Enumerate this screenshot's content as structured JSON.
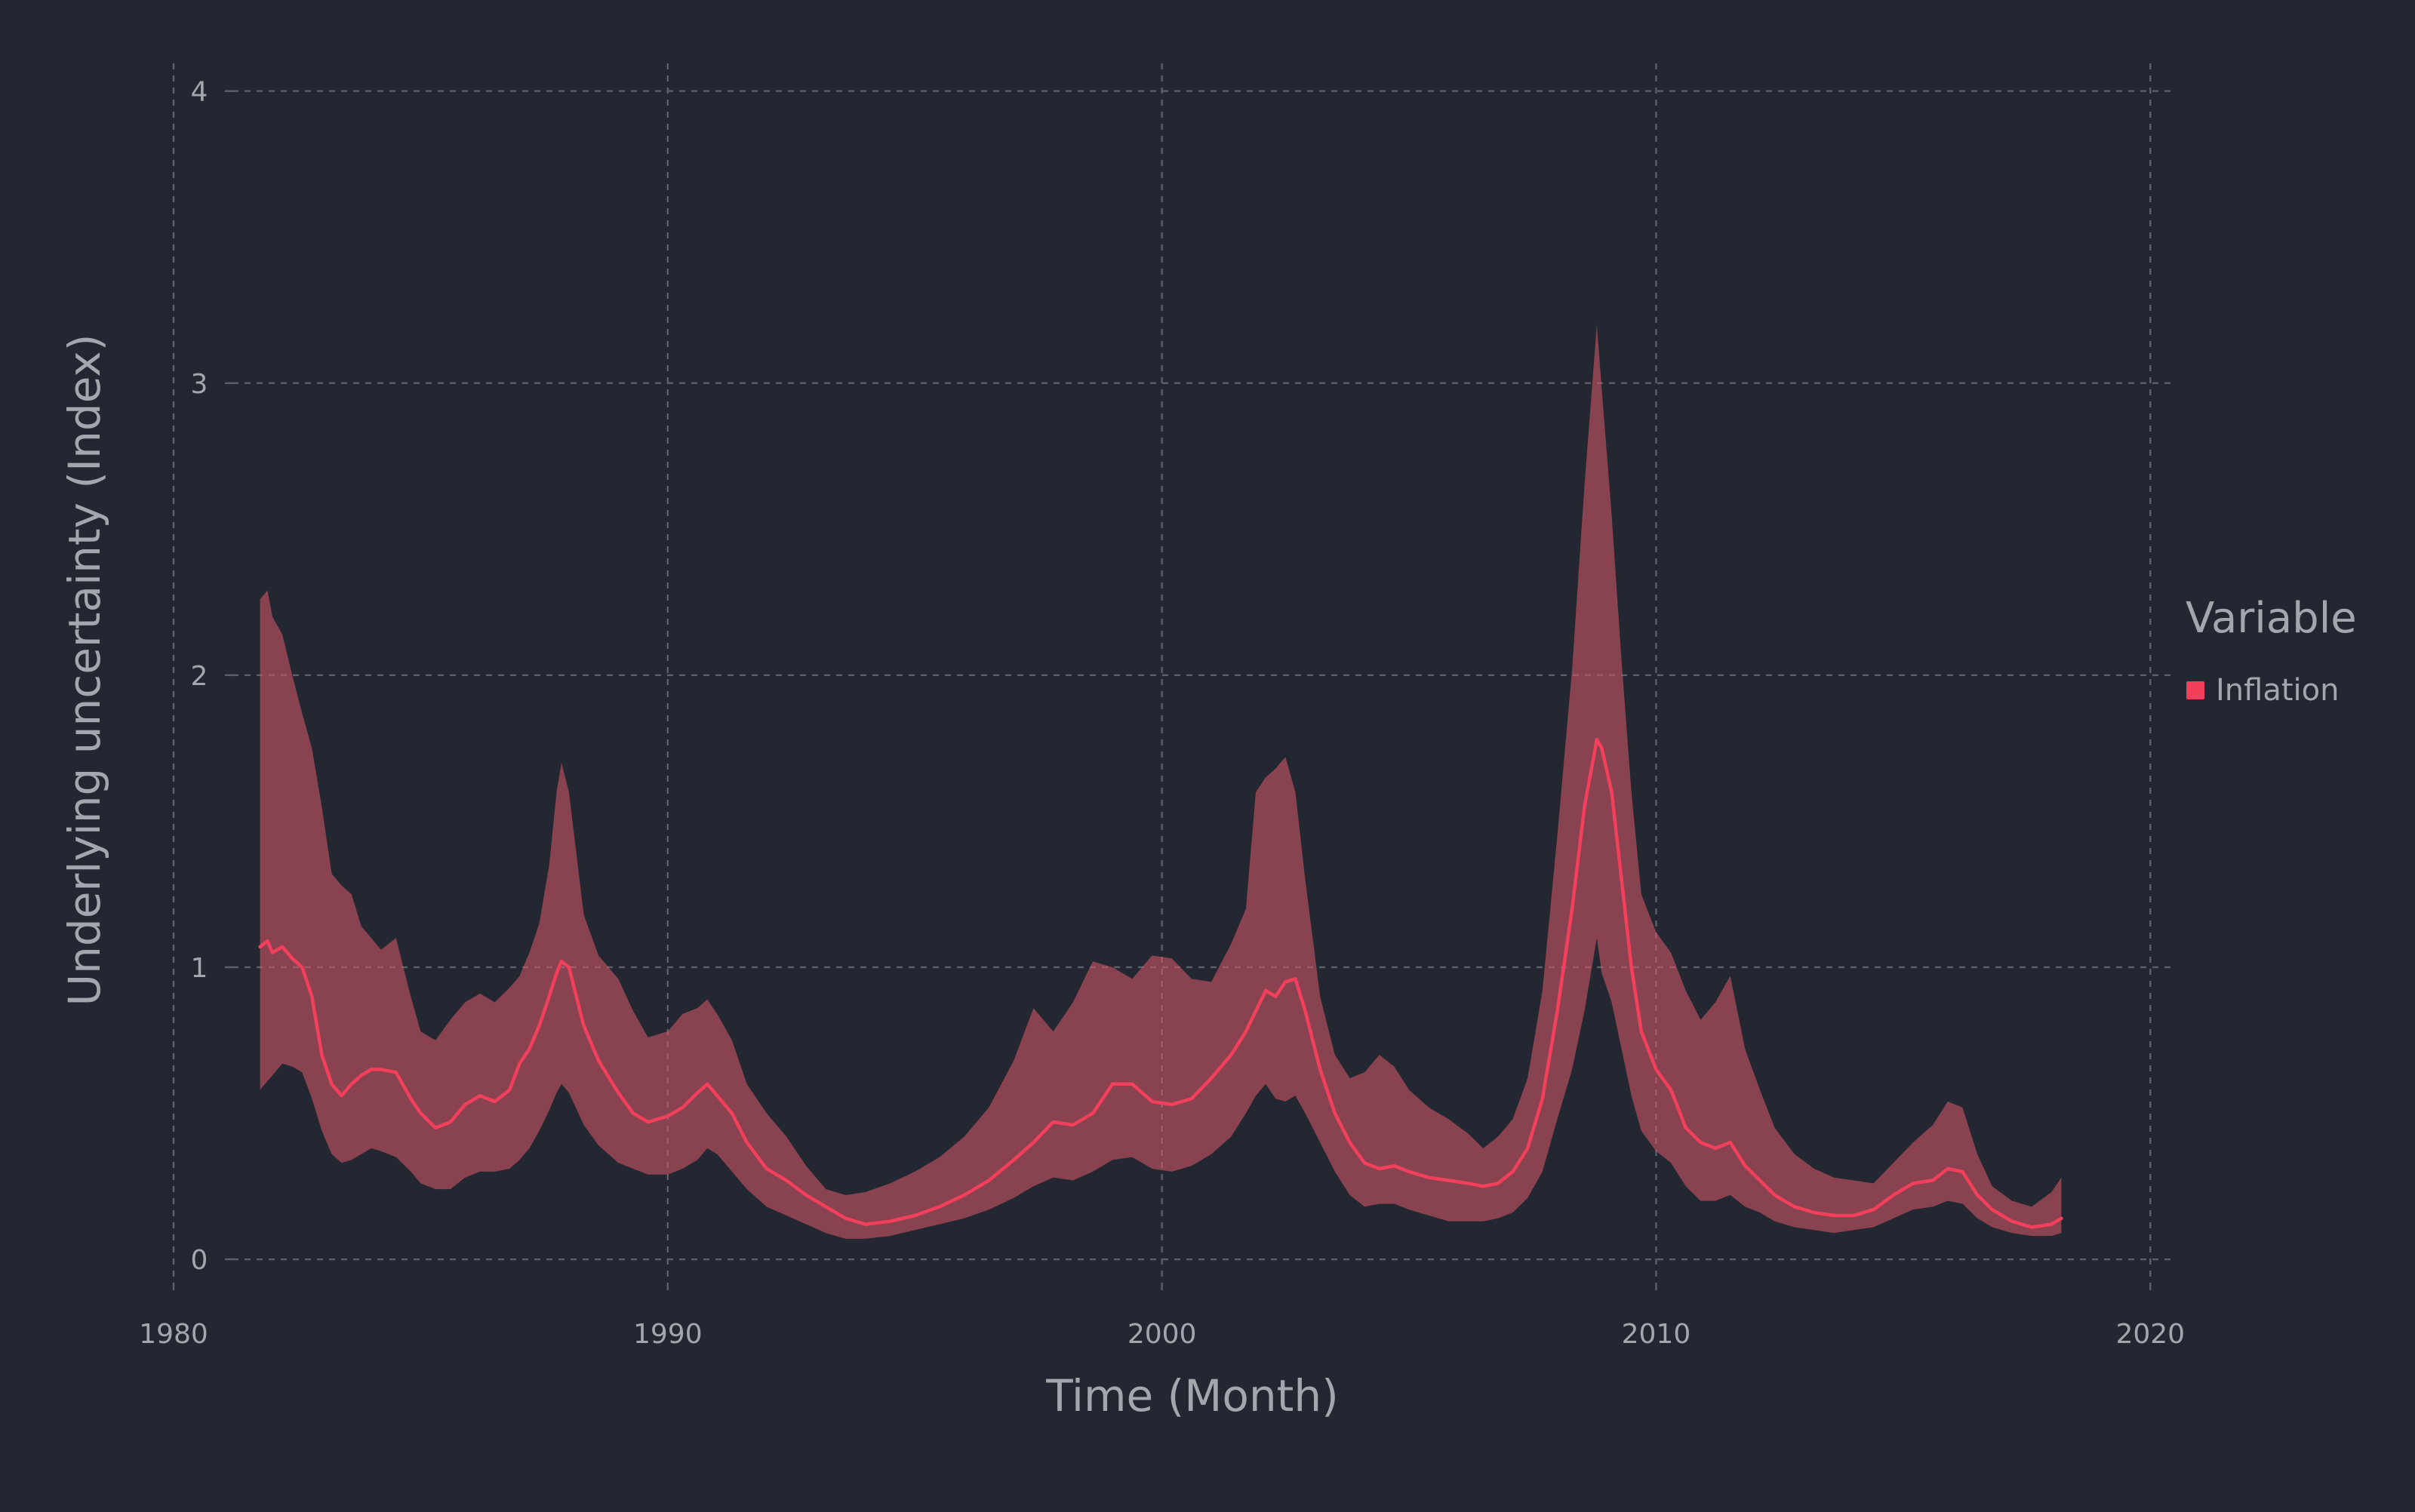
{
  "chart_data": {
    "type": "area",
    "title": "",
    "xlabel": "Time (Month)",
    "ylabel": "Underlying uncertainty (Index)",
    "xlim": [
      1980,
      2020.5
    ],
    "ylim": [
      -0.08,
      4.1
    ],
    "x_ticks": [
      "1980",
      "1990",
      "2000",
      "2010",
      "2020"
    ],
    "y_ticks": [
      "0",
      "1",
      "2",
      "3",
      "4"
    ],
    "grid": true,
    "legend": {
      "title": "Variable",
      "position": "right",
      "entries": [
        "Inflation"
      ]
    },
    "colors": {
      "background": "#222731",
      "line": "#f23f5c",
      "band": "#df5968",
      "band_opacity": 0.55,
      "grid": "#5b616a",
      "text": "#a3a7ad"
    },
    "series": [
      {
        "name": "Inflation",
        "x": [
          1981.75,
          1981.9,
          1982.0,
          1982.2,
          1982.4,
          1982.6,
          1982.8,
          1983.0,
          1983.2,
          1983.4,
          1983.6,
          1983.8,
          1984.0,
          1984.2,
          1984.5,
          1984.8,
          1985.0,
          1985.3,
          1985.6,
          1985.9,
          1986.2,
          1986.5,
          1986.8,
          1987.0,
          1987.2,
          1987.4,
          1987.6,
          1987.75,
          1987.85,
          1988.0,
          1988.3,
          1988.6,
          1989.0,
          1989.3,
          1989.6,
          1990.0,
          1990.3,
          1990.6,
          1990.8,
          1991.0,
          1991.3,
          1991.6,
          1992.0,
          1992.4,
          1992.8,
          1993.2,
          1993.6,
          1994.0,
          1994.5,
          1995.0,
          1995.5,
          1996.0,
          1996.5,
          1997.0,
          1997.4,
          1997.8,
          1998.2,
          1998.6,
          1999.0,
          1999.4,
          1999.8,
          2000.2,
          2000.6,
          2001.0,
          2001.4,
          2001.7,
          2001.9,
          2002.1,
          2002.3,
          2002.5,
          2002.7,
          2002.9,
          2003.2,
          2003.5,
          2003.8,
          2004.1,
          2004.4,
          2004.7,
          2005.0,
          2005.4,
          2005.8,
          2006.2,
          2006.5,
          2006.8,
          2007.1,
          2007.4,
          2007.7,
          2008.0,
          2008.3,
          2008.55,
          2008.8,
          2008.9,
          2009.1,
          2009.3,
          2009.5,
          2009.7,
          2010.0,
          2010.3,
          2010.6,
          2010.9,
          2011.2,
          2011.5,
          2011.8,
          2012.1,
          2012.4,
          2012.8,
          2013.2,
          2013.6,
          2014.0,
          2014.4,
          2014.8,
          2015.2,
          2015.6,
          2015.9,
          2016.2,
          2016.5,
          2016.8,
          2017.2,
          2017.6,
          2018.0,
          2018.2
        ],
        "mean": [
          1.07,
          1.09,
          1.05,
          1.07,
          1.03,
          1.0,
          0.9,
          0.7,
          0.6,
          0.56,
          0.6,
          0.63,
          0.65,
          0.65,
          0.64,
          0.55,
          0.5,
          0.45,
          0.47,
          0.53,
          0.56,
          0.54,
          0.58,
          0.67,
          0.72,
          0.8,
          0.9,
          0.98,
          1.02,
          1.0,
          0.8,
          0.68,
          0.57,
          0.5,
          0.47,
          0.49,
          0.52,
          0.57,
          0.6,
          0.56,
          0.5,
          0.4,
          0.31,
          0.27,
          0.22,
          0.18,
          0.14,
          0.12,
          0.13,
          0.15,
          0.18,
          0.22,
          0.27,
          0.34,
          0.4,
          0.47,
          0.46,
          0.5,
          0.6,
          0.6,
          0.54,
          0.53,
          0.55,
          0.62,
          0.7,
          0.78,
          0.85,
          0.92,
          0.9,
          0.95,
          0.96,
          0.85,
          0.65,
          0.5,
          0.4,
          0.33,
          0.31,
          0.32,
          0.3,
          0.28,
          0.27,
          0.26,
          0.25,
          0.26,
          0.3,
          0.38,
          0.55,
          0.85,
          1.2,
          1.55,
          1.78,
          1.75,
          1.6,
          1.3,
          1.0,
          0.78,
          0.65,
          0.58,
          0.45,
          0.4,
          0.38,
          0.4,
          0.32,
          0.27,
          0.22,
          0.18,
          0.16,
          0.15,
          0.15,
          0.17,
          0.22,
          0.26,
          0.27,
          0.31,
          0.3,
          0.22,
          0.17,
          0.13,
          0.11,
          0.12,
          0.14
        ],
        "lower": [
          0.58,
          0.61,
          0.63,
          0.67,
          0.66,
          0.64,
          0.55,
          0.44,
          0.36,
          0.33,
          0.34,
          0.36,
          0.38,
          0.37,
          0.35,
          0.3,
          0.26,
          0.24,
          0.24,
          0.28,
          0.3,
          0.3,
          0.31,
          0.34,
          0.38,
          0.44,
          0.51,
          0.57,
          0.6,
          0.57,
          0.46,
          0.39,
          0.33,
          0.31,
          0.29,
          0.29,
          0.31,
          0.34,
          0.38,
          0.36,
          0.3,
          0.24,
          0.18,
          0.15,
          0.12,
          0.09,
          0.07,
          0.07,
          0.08,
          0.1,
          0.12,
          0.14,
          0.17,
          0.21,
          0.25,
          0.28,
          0.27,
          0.3,
          0.34,
          0.35,
          0.31,
          0.3,
          0.32,
          0.36,
          0.42,
          0.5,
          0.56,
          0.6,
          0.55,
          0.54,
          0.56,
          0.5,
          0.4,
          0.3,
          0.22,
          0.18,
          0.19,
          0.19,
          0.17,
          0.15,
          0.13,
          0.13,
          0.13,
          0.14,
          0.16,
          0.21,
          0.3,
          0.48,
          0.65,
          0.85,
          1.1,
          0.98,
          0.88,
          0.72,
          0.56,
          0.44,
          0.37,
          0.33,
          0.25,
          0.2,
          0.2,
          0.22,
          0.18,
          0.16,
          0.13,
          0.11,
          0.1,
          0.09,
          0.1,
          0.11,
          0.14,
          0.17,
          0.18,
          0.2,
          0.19,
          0.14,
          0.11,
          0.09,
          0.08,
          0.08,
          0.09
        ],
        "upper": [
          2.26,
          2.29,
          2.2,
          2.14,
          2.0,
          1.87,
          1.75,
          1.55,
          1.32,
          1.28,
          1.25,
          1.14,
          1.1,
          1.06,
          1.1,
          0.9,
          0.78,
          0.75,
          0.82,
          0.88,
          0.91,
          0.88,
          0.93,
          0.97,
          1.05,
          1.15,
          1.35,
          1.6,
          1.7,
          1.6,
          1.18,
          1.04,
          0.96,
          0.85,
          0.76,
          0.78,
          0.84,
          0.86,
          0.89,
          0.84,
          0.75,
          0.6,
          0.5,
          0.42,
          0.32,
          0.24,
          0.22,
          0.23,
          0.26,
          0.3,
          0.35,
          0.42,
          0.52,
          0.68,
          0.86,
          0.78,
          0.88,
          1.02,
          1.0,
          0.96,
          1.04,
          1.03,
          0.96,
          0.95,
          1.08,
          1.2,
          1.6,
          1.65,
          1.68,
          1.72,
          1.6,
          1.3,
          0.9,
          0.7,
          0.62,
          0.64,
          0.7,
          0.66,
          0.58,
          0.52,
          0.48,
          0.43,
          0.38,
          0.42,
          0.48,
          0.62,
          0.92,
          1.45,
          2.02,
          2.65,
          3.2,
          2.98,
          2.55,
          2.05,
          1.6,
          1.25,
          1.12,
          1.05,
          0.92,
          0.82,
          0.88,
          0.97,
          0.72,
          0.58,
          0.45,
          0.36,
          0.31,
          0.28,
          0.27,
          0.26,
          0.33,
          0.4,
          0.46,
          0.54,
          0.52,
          0.36,
          0.25,
          0.2,
          0.18,
          0.23,
          0.28
        ]
      }
    ]
  }
}
